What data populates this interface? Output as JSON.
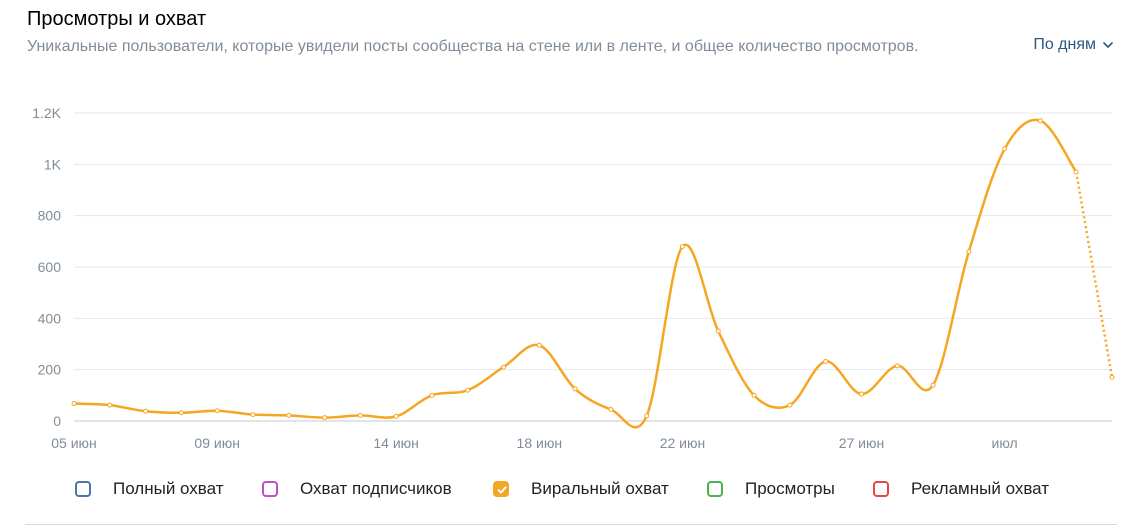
{
  "header": {
    "title": "Просмотры и охват",
    "subtitle": "Уникальные пользователи, которые увидели посты сообщества на стене или в ленте, и общее количество просмотров.",
    "period_label": "По дням"
  },
  "legend": [
    {
      "label": "Полный охват",
      "color": "#4a76a8",
      "checked": false
    },
    {
      "label": "Охват подписчиков",
      "color": "#c04fc8",
      "checked": false
    },
    {
      "label": "Виральный охват",
      "color": "#f5a623",
      "checked": true
    },
    {
      "label": "Просмотры",
      "color": "#4bb34b",
      "checked": false
    },
    {
      "label": "Рекламный охват",
      "color": "#e64646",
      "checked": false
    }
  ],
  "chart_data": {
    "type": "line",
    "y_ticks": [
      "0",
      "200",
      "400",
      "600",
      "800",
      "1K",
      "1.2K"
    ],
    "ylim": [
      0,
      1200
    ],
    "x_tick_labels": [
      {
        "label": "05 июн",
        "day": 0
      },
      {
        "label": "09 июн",
        "day": 4
      },
      {
        "label": "14 июн",
        "day": 9
      },
      {
        "label": "18 июн",
        "day": 13
      },
      {
        "label": "22 июн",
        "day": 17
      },
      {
        "label": "27 июн",
        "day": 22
      },
      {
        "label": "июл",
        "day": 26
      }
    ],
    "grid": true,
    "series": [
      {
        "name": "Виральный охват",
        "color": "#f5a623",
        "x": [
          0,
          1,
          2,
          3,
          4,
          5,
          6,
          7,
          8,
          9,
          10,
          11,
          12,
          13,
          14,
          15,
          16,
          17,
          18,
          19,
          20,
          21,
          22,
          23,
          24,
          25,
          26,
          27,
          28,
          29
        ],
        "values": [
          68,
          62,
          38,
          32,
          40,
          25,
          22,
          13,
          22,
          18,
          100,
          120,
          210,
          295,
          125,
          45,
          20,
          680,
          350,
          100,
          62,
          232,
          105,
          215,
          140,
          660,
          1060,
          1170,
          970,
          170
        ],
        "dotted_from_index": 28
      }
    ]
  }
}
